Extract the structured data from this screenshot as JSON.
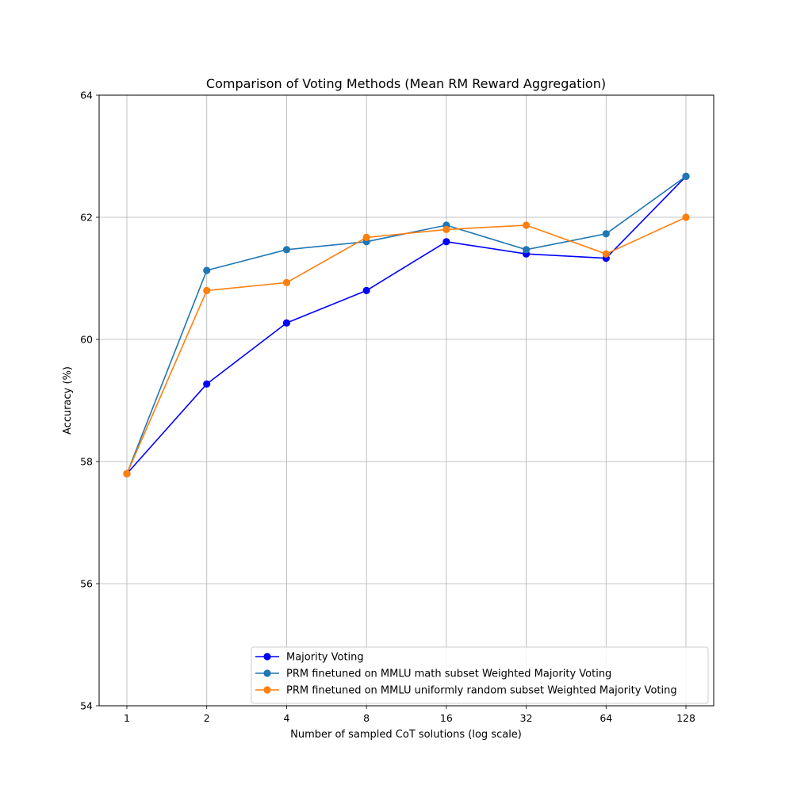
{
  "chart_data": {
    "type": "line",
    "title": "Comparison of Voting Methods (Mean RM Reward Aggregation)",
    "xlabel": "Number of sampled CoT solutions (log scale)",
    "ylabel": "Accuracy (%)",
    "x_scale": "log2",
    "x": [
      1,
      2,
      4,
      8,
      16,
      32,
      64,
      128
    ],
    "x_tick_labels": [
      "1",
      "2",
      "4",
      "8",
      "16",
      "32",
      "64",
      "128"
    ],
    "ylim": [
      54,
      64
    ],
    "y_ticks": [
      54,
      56,
      58,
      60,
      62,
      64
    ],
    "y_tick_labels": [
      "54",
      "56",
      "58",
      "60",
      "62",
      "64"
    ],
    "grid": true,
    "legend_position": "bottom-right",
    "series": [
      {
        "name": "Majority Voting",
        "color": "#0000ff",
        "values": [
          57.8,
          59.27,
          60.27,
          60.8,
          61.6,
          61.4,
          61.33,
          62.67
        ]
      },
      {
        "name": "PRM finetuned on MMLU math subset Weighted Majority Voting",
        "color": "#1f77b4",
        "values": [
          57.8,
          61.13,
          61.47,
          61.6,
          61.87,
          61.47,
          61.73,
          62.67
        ]
      },
      {
        "name": "PRM finetuned on MMLU uniformly random subset Weighted Majority Voting",
        "color": "#ff7f0e",
        "values": [
          57.8,
          60.8,
          60.93,
          61.67,
          61.8,
          61.87,
          61.4,
          62.0
        ]
      }
    ]
  }
}
